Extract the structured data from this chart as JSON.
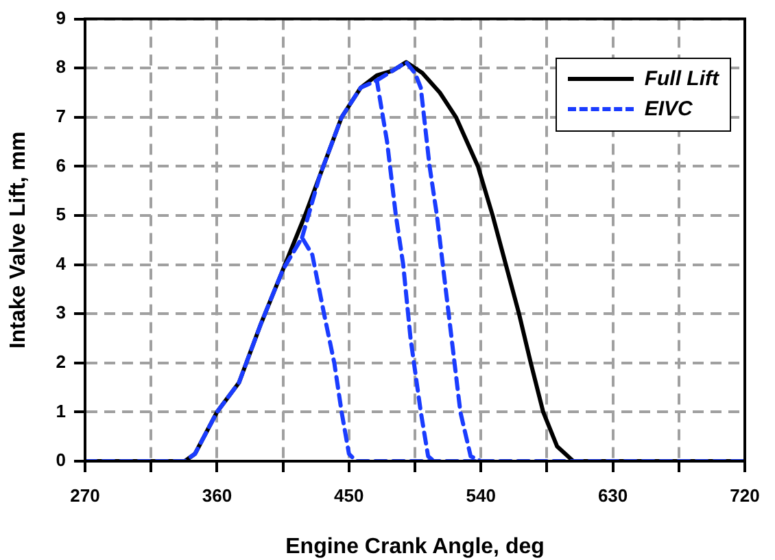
{
  "chart_data": {
    "type": "line",
    "xlabel": "Engine Crank Angle, deg",
    "ylabel": "Intake Valve Lift, mm",
    "xlim": [
      270,
      720
    ],
    "xticks": [
      270,
      {
        "value": 315,
        "label": null
      },
      360,
      {
        "value": 405,
        "label": null
      },
      450,
      {
        "value": 495,
        "label": null
      },
      540,
      {
        "value": 585,
        "label": null
      },
      630,
      {
        "value": 675,
        "label": null
      },
      720
    ],
    "ylim": [
      0,
      9
    ],
    "yticks": [
      0,
      1,
      2,
      3,
      4,
      5,
      6,
      7,
      8,
      9
    ],
    "grid": true,
    "legend": "top right",
    "marker": "none",
    "series": [
      {
        "name": "Full Lift",
        "color": "#000000",
        "line_style": "solid",
        "x": [
          270,
          338,
          345,
          360,
          375,
          390,
          405,
          420,
          430,
          445,
          458,
          469,
          480,
          489,
          500,
          512,
          523,
          538,
          548,
          557,
          566,
          574,
          582.5,
          592,
          603,
          720
        ],
        "values": [
          0,
          0,
          0.15,
          1,
          1.6,
          2.8,
          3.9,
          5,
          5.8,
          7,
          7.6,
          7.85,
          7.95,
          8.12,
          7.9,
          7.5,
          7,
          6,
          5,
          4,
          3,
          2,
          1,
          0.3,
          0,
          0
        ]
      },
      {
        "name": "EIVC",
        "color": "#1a3cff",
        "line_style": "dashed",
        "x": [
          270,
          338,
          345,
          360,
          375,
          390,
          405,
          418,
          425,
          433,
          440,
          445,
          450,
          455,
          720,
          null,
          418,
          430,
          445,
          458,
          469,
          476,
          482,
          487,
          492,
          499,
          504,
          508,
          null,
          469,
          480,
          489,
          495,
          499,
          505,
          510,
          514,
          520,
          526,
          533,
          540
        ],
        "values": [
          0,
          0,
          0.15,
          1,
          1.6,
          2.8,
          3.9,
          4.55,
          4.2,
          3,
          2,
          1,
          0.15,
          0,
          0,
          null,
          4.55,
          5.8,
          7,
          7.6,
          7.75,
          6.5,
          5,
          4,
          2.5,
          1,
          0.1,
          0,
          null,
          7.75,
          7.95,
          8.12,
          7.9,
          7.6,
          6,
          5,
          4,
          2.5,
          1,
          0.1,
          0
        ]
      }
    ]
  }
}
